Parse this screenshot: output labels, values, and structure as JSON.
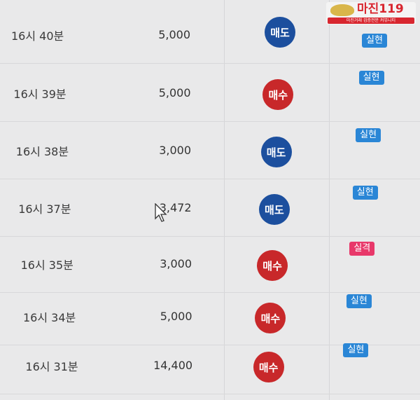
{
  "logo": {
    "name": "마진119",
    "tagline": "마진거래 검증전문 커뮤니티"
  },
  "colors": {
    "sell": "#1c4f9e",
    "buy": "#c8282a",
    "realized": "#2a86d6",
    "failed": "#e8386a"
  },
  "rows": [
    {
      "time": "16시 40분",
      "amount": "5,000",
      "side": "매도",
      "type": "sell",
      "result": "실현",
      "result_type": "realized"
    },
    {
      "time": "16시 39분",
      "amount": "5,000",
      "side": "매수",
      "type": "buy",
      "result": "실현",
      "result_type": "realized"
    },
    {
      "time": "16시 38분",
      "amount": "3,000",
      "side": "매도",
      "type": "sell",
      "result": "실현",
      "result_type": "realized"
    },
    {
      "time": "16시 37분",
      "amount": "3,472",
      "side": "매도",
      "type": "sell",
      "result": "실현",
      "result_type": "realized"
    },
    {
      "time": "16시 35분",
      "amount": "3,000",
      "side": "매수",
      "type": "buy",
      "result": "실격",
      "result_type": "failed"
    },
    {
      "time": "16시 34분",
      "amount": "5,000",
      "side": "매수",
      "type": "buy",
      "result": "실현",
      "result_type": "realized"
    },
    {
      "time": "16시 31분",
      "amount": "14,400",
      "side": "매수",
      "type": "buy",
      "result": "실현",
      "result_type": "realized"
    }
  ]
}
